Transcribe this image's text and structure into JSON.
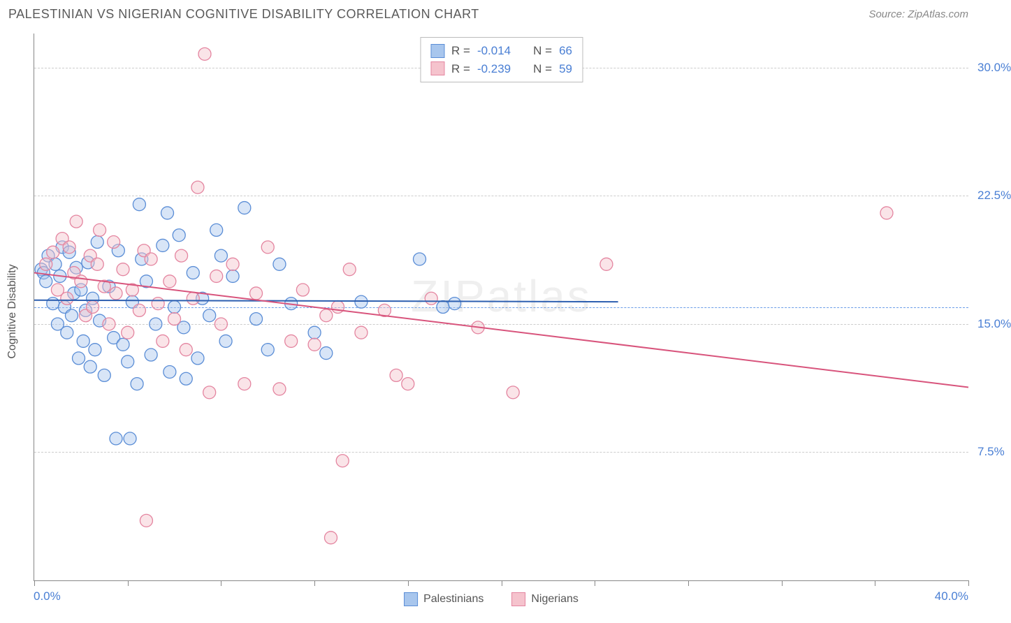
{
  "header": {
    "title": "PALESTINIAN VS NIGERIAN COGNITIVE DISABILITY CORRELATION CHART",
    "source": "Source: ZipAtlas.com"
  },
  "chart": {
    "type": "scatter",
    "y_label": "Cognitive Disability",
    "xlim": [
      0,
      40
    ],
    "ylim": [
      0,
      32
    ],
    "x_min_label": "0.0%",
    "x_max_label": "40.0%",
    "y_ticks": [
      7.5,
      15.0,
      22.5,
      30.0
    ],
    "y_tick_labels": [
      "7.5%",
      "15.0%",
      "22.5%",
      "30.0%"
    ],
    "reference_line_y": 16.0,
    "x_tick_positions": [
      0,
      4,
      8,
      12,
      16,
      20,
      24,
      28,
      32,
      36,
      40
    ],
    "background_color": "#ffffff",
    "grid_color": "#cccccc",
    "reference_line_color": "#6a9de8",
    "axis_label_color": "#4a7fd4",
    "watermark": "ZIPatlas",
    "marker_radius": 9,
    "marker_opacity": 0.45,
    "trend_line_width": 2,
    "series": [
      {
        "name": "Palestinians",
        "fill": "#a8c6ed",
        "stroke": "#5a8dd6",
        "line_color": "#2d5fb0",
        "R": "-0.014",
        "N": "66",
        "trend": {
          "x1": 0,
          "y1": 16.4,
          "x2": 25,
          "y2": 16.3
        },
        "points": [
          [
            0.3,
            18.2
          ],
          [
            0.4,
            18.0
          ],
          [
            0.5,
            17.5
          ],
          [
            0.6,
            19.0
          ],
          [
            0.8,
            16.2
          ],
          [
            0.9,
            18.5
          ],
          [
            1.0,
            15.0
          ],
          [
            1.1,
            17.8
          ],
          [
            1.2,
            19.5
          ],
          [
            1.3,
            16.0
          ],
          [
            1.4,
            14.5
          ],
          [
            1.5,
            19.2
          ],
          [
            1.6,
            15.5
          ],
          [
            1.7,
            16.8
          ],
          [
            1.8,
            18.3
          ],
          [
            1.9,
            13.0
          ],
          [
            2.0,
            17.0
          ],
          [
            2.1,
            14.0
          ],
          [
            2.2,
            15.8
          ],
          [
            2.3,
            18.6
          ],
          [
            2.4,
            12.5
          ],
          [
            2.5,
            16.5
          ],
          [
            2.6,
            13.5
          ],
          [
            2.7,
            19.8
          ],
          [
            2.8,
            15.2
          ],
          [
            3.0,
            12.0
          ],
          [
            3.2,
            17.2
          ],
          [
            3.4,
            14.2
          ],
          [
            3.5,
            8.3
          ],
          [
            3.6,
            19.3
          ],
          [
            3.8,
            13.8
          ],
          [
            4.0,
            12.8
          ],
          [
            4.1,
            8.3
          ],
          [
            4.2,
            16.3
          ],
          [
            4.4,
            11.5
          ],
          [
            4.5,
            22.0
          ],
          [
            4.6,
            18.8
          ],
          [
            4.8,
            17.5
          ],
          [
            5.0,
            13.2
          ],
          [
            5.2,
            15.0
          ],
          [
            5.5,
            19.6
          ],
          [
            5.7,
            21.5
          ],
          [
            5.8,
            12.2
          ],
          [
            6.0,
            16.0
          ],
          [
            6.2,
            20.2
          ],
          [
            6.4,
            14.8
          ],
          [
            6.5,
            11.8
          ],
          [
            6.8,
            18.0
          ],
          [
            7.0,
            13.0
          ],
          [
            7.2,
            16.5
          ],
          [
            7.5,
            15.5
          ],
          [
            7.8,
            20.5
          ],
          [
            8.0,
            19.0
          ],
          [
            8.2,
            14.0
          ],
          [
            8.5,
            17.8
          ],
          [
            9.0,
            21.8
          ],
          [
            9.5,
            15.3
          ],
          [
            10.0,
            13.5
          ],
          [
            10.5,
            18.5
          ],
          [
            11.0,
            16.2
          ],
          [
            12.0,
            14.5
          ],
          [
            12.5,
            13.3
          ],
          [
            14.0,
            16.3
          ],
          [
            16.5,
            18.8
          ],
          [
            17.5,
            16.0
          ],
          [
            18.0,
            16.2
          ]
        ]
      },
      {
        "name": "Nigerians",
        "fill": "#f5c3cd",
        "stroke": "#e485a0",
        "line_color": "#d8547c",
        "R": "-0.239",
        "N": "59",
        "trend": {
          "x1": 0,
          "y1": 18.0,
          "x2": 40,
          "y2": 11.3
        },
        "points": [
          [
            0.5,
            18.5
          ],
          [
            0.8,
            19.2
          ],
          [
            1.0,
            17.0
          ],
          [
            1.2,
            20.0
          ],
          [
            1.4,
            16.5
          ],
          [
            1.5,
            19.5
          ],
          [
            1.7,
            18.0
          ],
          [
            1.8,
            21.0
          ],
          [
            2.0,
            17.5
          ],
          [
            2.2,
            15.5
          ],
          [
            2.4,
            19.0
          ],
          [
            2.5,
            16.0
          ],
          [
            2.7,
            18.5
          ],
          [
            2.8,
            20.5
          ],
          [
            3.0,
            17.2
          ],
          [
            3.2,
            15.0
          ],
          [
            3.4,
            19.8
          ],
          [
            3.5,
            16.8
          ],
          [
            3.8,
            18.2
          ],
          [
            4.0,
            14.5
          ],
          [
            4.2,
            17.0
          ],
          [
            4.5,
            15.8
          ],
          [
            4.7,
            19.3
          ],
          [
            4.8,
            3.5
          ],
          [
            5.0,
            18.8
          ],
          [
            5.3,
            16.2
          ],
          [
            5.5,
            14.0
          ],
          [
            5.8,
            17.5
          ],
          [
            6.0,
            15.3
          ],
          [
            6.3,
            19.0
          ],
          [
            6.5,
            13.5
          ],
          [
            6.8,
            16.5
          ],
          [
            7.0,
            23.0
          ],
          [
            7.3,
            30.8
          ],
          [
            7.5,
            11.0
          ],
          [
            7.8,
            17.8
          ],
          [
            8.0,
            15.0
          ],
          [
            8.5,
            18.5
          ],
          [
            9.0,
            11.5
          ],
          [
            9.5,
            16.8
          ],
          [
            10.0,
            19.5
          ],
          [
            10.5,
            11.2
          ],
          [
            11.0,
            14.0
          ],
          [
            11.5,
            17.0
          ],
          [
            12.0,
            13.8
          ],
          [
            12.5,
            15.5
          ],
          [
            12.7,
            2.5
          ],
          [
            13.0,
            16.0
          ],
          [
            13.2,
            7.0
          ],
          [
            13.5,
            18.2
          ],
          [
            14.0,
            14.5
          ],
          [
            15.0,
            15.8
          ],
          [
            15.5,
            12.0
          ],
          [
            16.0,
            11.5
          ],
          [
            17.0,
            16.5
          ],
          [
            19.0,
            14.8
          ],
          [
            20.5,
            11.0
          ],
          [
            24.5,
            18.5
          ],
          [
            36.5,
            21.5
          ]
        ]
      }
    ]
  },
  "bottom_legend": [
    {
      "label": "Palestinians",
      "fill": "#a8c6ed",
      "stroke": "#5a8dd6"
    },
    {
      "label": "Nigerians",
      "fill": "#f5c3cd",
      "stroke": "#e485a0"
    }
  ]
}
